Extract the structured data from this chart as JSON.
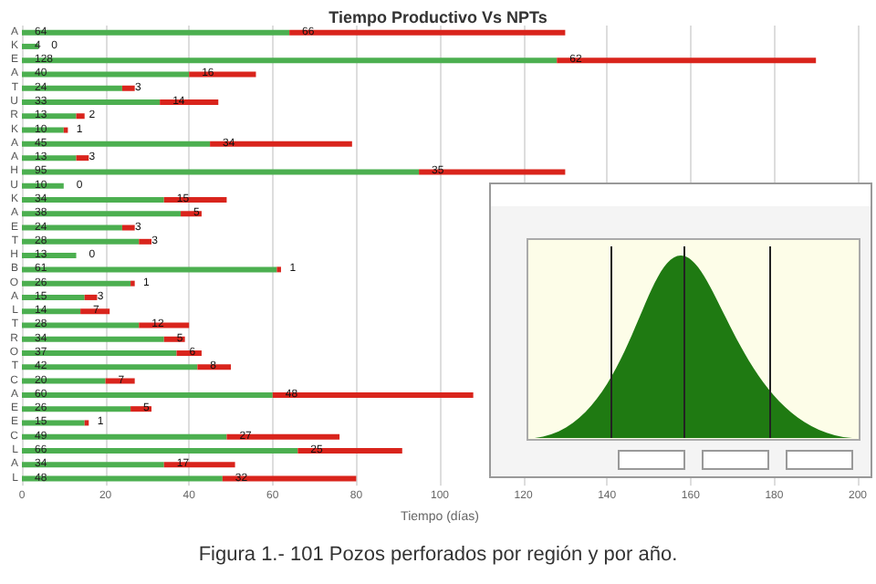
{
  "chart_data": {
    "type": "bar",
    "orientation": "horizontal",
    "stacked": true,
    "title": "Tiempo Productivo Vs NPTs",
    "xlabel": "Tiempo (días)",
    "categories": [
      "A",
      "K",
      "E",
      "A",
      "T",
      "U",
      "R",
      "K",
      "A",
      "A",
      "H",
      "U",
      "K",
      "A",
      "E",
      "T",
      "H",
      "B",
      "O",
      "A",
      "L",
      "T",
      "R",
      "O",
      "T",
      "C",
      "A",
      "E",
      "E",
      "C",
      "L",
      "A",
      "L"
    ],
    "series": [
      {
        "color": "#4caf50",
        "values": [
          64,
          4,
          128,
          40,
          24,
          33,
          13,
          10,
          45,
          13,
          95,
          10,
          34,
          38,
          24,
          28,
          13,
          61,
          26,
          15,
          14,
          28,
          34,
          37,
          42,
          20,
          60,
          26,
          15,
          49,
          66,
          34,
          48
        ]
      },
      {
        "color": "#d9241c",
        "values": [
          66,
          0,
          62,
          16,
          3,
          14,
          2,
          1,
          34,
          3,
          35,
          0,
          15,
          5,
          3,
          3,
          0,
          1,
          1,
          3,
          7,
          12,
          5,
          6,
          8,
          7,
          48,
          5,
          1,
          27,
          25,
          17,
          32
        ]
      }
    ],
    "xlim": [
      0,
      200
    ],
    "xticks": [
      0,
      20,
      40,
      60,
      80,
      100,
      120,
      140,
      160,
      180,
      200
    ],
    "grid": "x",
    "data_labels": true,
    "annotations": [
      "Figura 1.- 101 Pozos perforados por región y por año."
    ]
  }
}
